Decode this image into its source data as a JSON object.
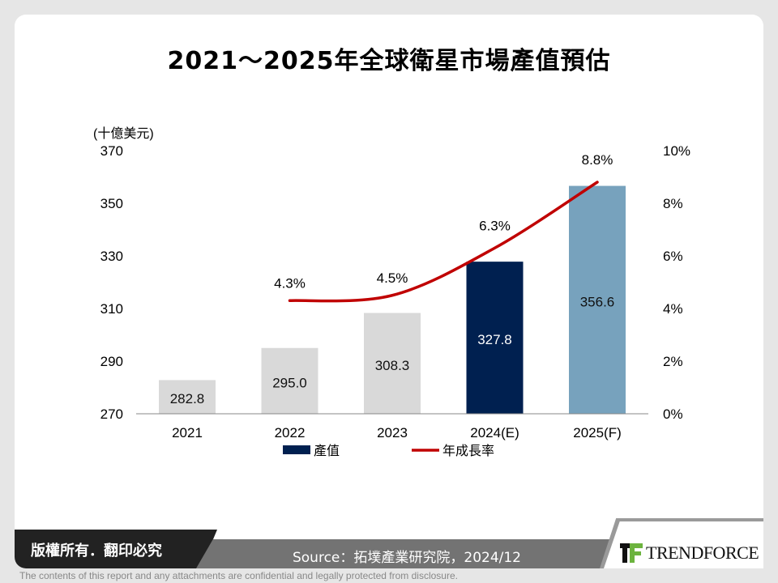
{
  "title": "2021～2025年全球衛星市場產值預估",
  "chart_data": {
    "type": "bar",
    "title": "2021～2025年全球衛星市場產值預估",
    "categories": [
      "2021",
      "2022",
      "2023",
      "2024(E)",
      "2025(F)"
    ],
    "y_unit_label": "(十億美元)",
    "ylim": [
      270,
      370
    ],
    "yticks": [
      270,
      290,
      310,
      330,
      350,
      370
    ],
    "y2lim": [
      0,
      10
    ],
    "y2ticks": [
      "0%",
      "2%",
      "4%",
      "6%",
      "8%",
      "10%"
    ],
    "grid": false,
    "legend_placement": "bottom",
    "series": [
      {
        "name": "產值",
        "type": "bar",
        "values": [
          282.8,
          295.0,
          308.3,
          327.8,
          356.6
        ],
        "labels": [
          "282.8",
          "295.0",
          "308.3",
          "327.8",
          "356.6"
        ],
        "colors": [
          "#d9d9d9",
          "#d9d9d9",
          "#d9d9d9",
          "#002050",
          "#77a2bd"
        ],
        "legend_color": "#002050"
      },
      {
        "name": "年成長率",
        "type": "line",
        "axis": "right",
        "x": [
          "2022",
          "2023",
          "2024(E)",
          "2025(F)"
        ],
        "values": [
          4.3,
          4.5,
          6.3,
          8.8
        ],
        "labels": [
          "4.3%",
          "4.5%",
          "6.3%",
          "8.8%"
        ],
        "color": "#c00000"
      }
    ]
  },
  "footer": {
    "copyright": "版權所有．翻印必究",
    "source": "Source：拓墣產業研究院，2024/12",
    "logo_text": "TRENDFORCE",
    "disclaimer": "The contents of this report and any attachments are confidential and legally protected from disclosure."
  }
}
